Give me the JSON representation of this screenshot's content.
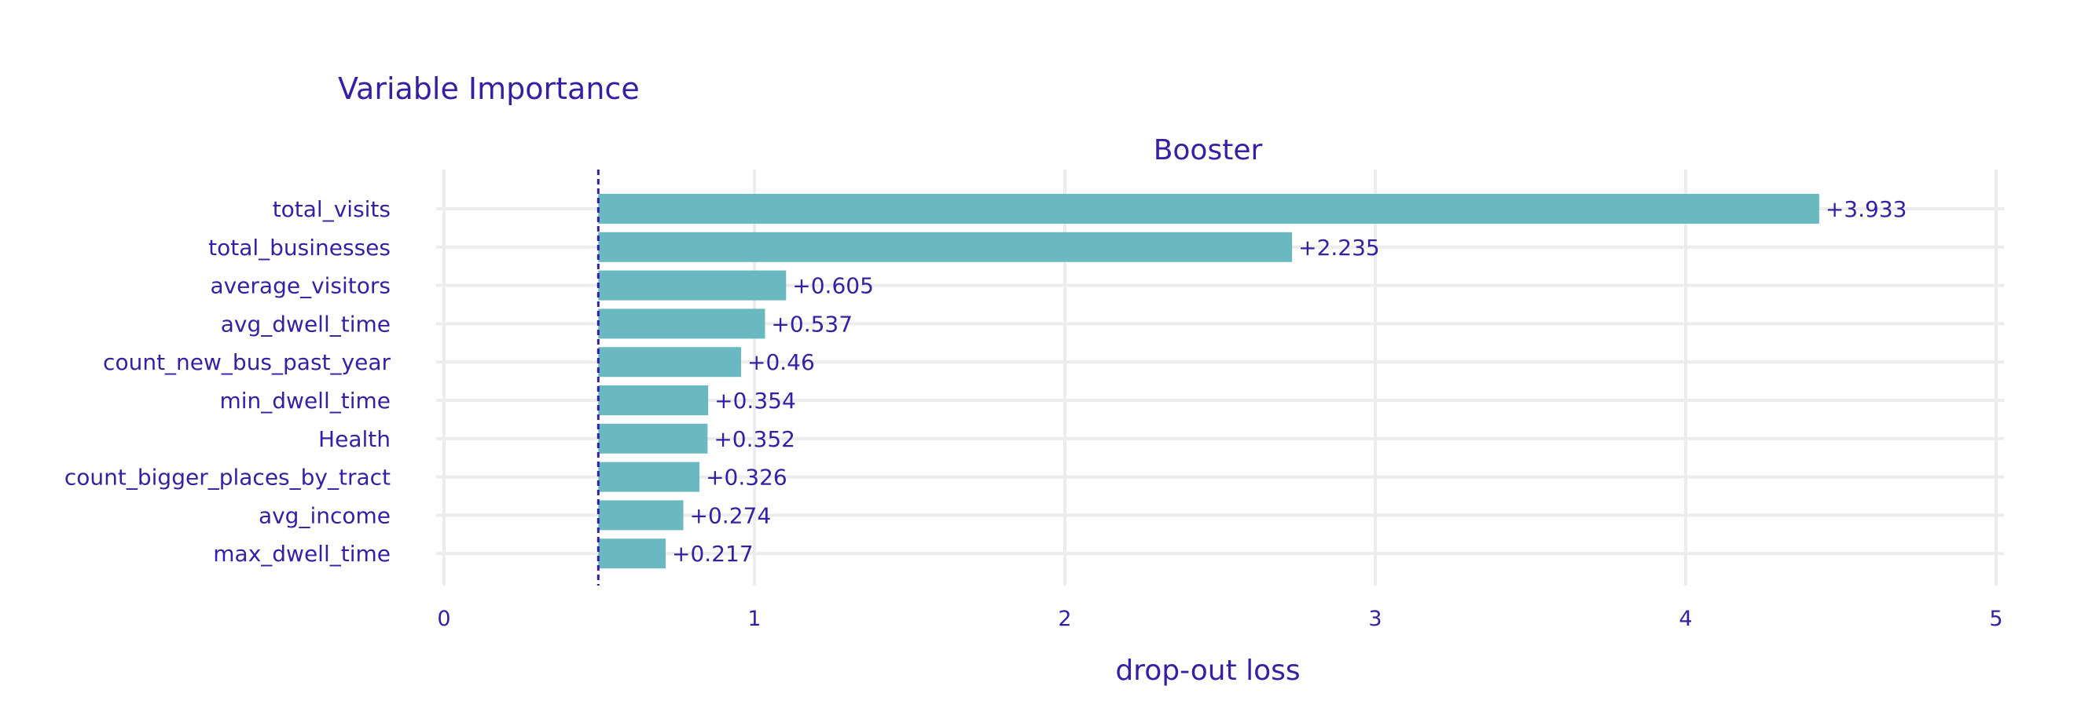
{
  "colors": {
    "bar": "#6ab8c0",
    "text": "#371ea3",
    "grid": "#ececec",
    "baseline": "#371ea3"
  },
  "chart_data": {
    "type": "bar",
    "orientation": "horizontal",
    "title": "Variable Importance",
    "subtitle": "Booster",
    "xlabel": "drop-out loss",
    "ylabel": "",
    "xlim": [
      0,
      5
    ],
    "xticks": [
      "0",
      "1",
      "2",
      "3",
      "4",
      "5"
    ],
    "baseline": 0.497,
    "grid": true,
    "legend": "none",
    "categories": [
      "total_visits",
      "total_businesses",
      "average_visitors",
      "avg_dwell_time",
      "count_new_bus_past_year",
      "min_dwell_time",
      "Health",
      "count_bigger_places_by_tract",
      "avg_income",
      "max_dwell_time"
    ],
    "values": [
      3.933,
      2.235,
      0.605,
      0.537,
      0.46,
      0.354,
      0.352,
      0.326,
      0.274,
      0.217
    ],
    "value_labels": [
      "+3.933",
      "+2.235",
      "+0.605",
      "+0.537",
      "+0.46",
      "+0.354",
      "+0.352",
      "+0.326",
      "+0.274",
      "+0.217"
    ]
  }
}
